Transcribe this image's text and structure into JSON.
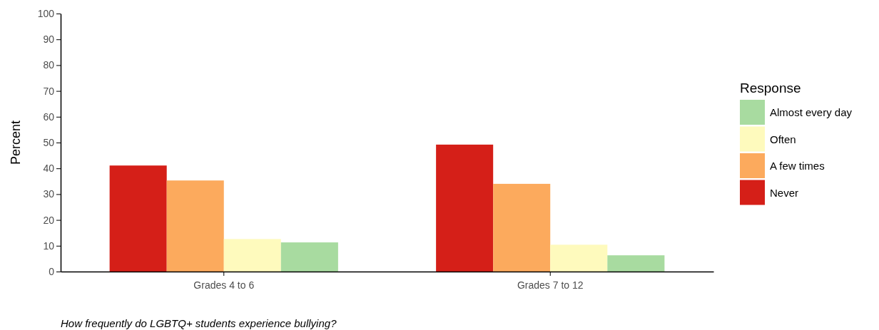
{
  "chart_data": {
    "type": "bar",
    "ylabel": "Percent",
    "legend_title": "Response",
    "categories": [
      "Grades 4 to 6",
      "Grades 7 to 12"
    ],
    "series": [
      {
        "name": "Never",
        "color": "#d51f18",
        "values": [
          41.1,
          49.2
        ]
      },
      {
        "name": "A few times",
        "color": "#fcaa5d",
        "values": [
          35.3,
          34.0
        ]
      },
      {
        "name": "Often",
        "color": "#fefabd",
        "values": [
          12.6,
          10.4
        ]
      },
      {
        "name": "Almost every day",
        "color": "#a8dba0",
        "values": [
          11.3,
          6.3
        ]
      }
    ],
    "ylim": [
      0,
      100
    ],
    "yticks": [
      0,
      10,
      20,
      30,
      40,
      50,
      60,
      70,
      80,
      90,
      100
    ],
    "grid": false,
    "legend": "right",
    "annotations": [
      "How frequently do LGBTQ+ students experience bullying?"
    ]
  }
}
